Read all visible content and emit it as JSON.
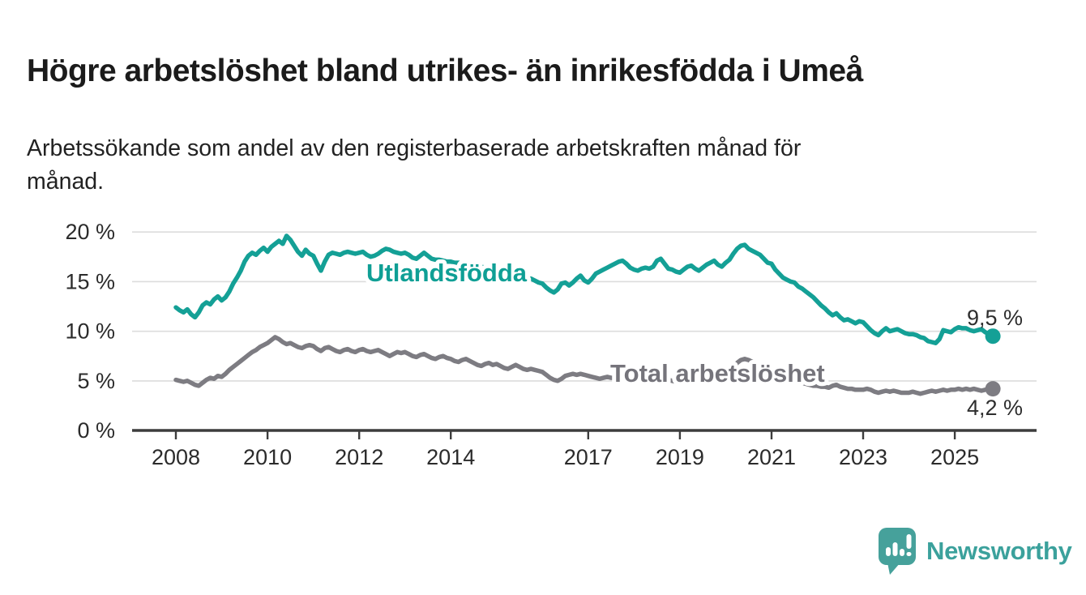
{
  "title": "Högre arbetslöshet bland utrikes- än inrikesfödda i Umeå",
  "subtitle": "Arbetssökande som andel av den registerbaserade arbetskraften månad för månad.",
  "subtitle_lines": {
    "line1": "Arbetssökande som andel av den registerbaserade arbetskraften månad för",
    "line2": "månad."
  },
  "branding": {
    "logo_text": "Newsworthy",
    "logo_color": "#46a19b",
    "logo_icon": "bar-chart-speech-bubble"
  },
  "colors": {
    "foreign_born_line": "#14a096",
    "total_line": "#7d7c82",
    "grid": "#dcdcdc",
    "axis": "#3d3d3d",
    "title_text": "#1b1b1b"
  },
  "chart_data": {
    "type": "line",
    "title": "Högre arbetslöshet bland utrikes- än inrikesfödda i Umeå",
    "subtitle": "Arbetssökande som andel av den registerbaserade arbetskraften månad för månad.",
    "unit": "%",
    "x_start": "2008-01",
    "x_end": "2025-11",
    "x_frequency": "monthly",
    "x_ticks": [
      "2008",
      "2010",
      "2012",
      "2014",
      "2017",
      "2019",
      "2021",
      "2023",
      "2025"
    ],
    "x_tick_years": [
      2008,
      2010,
      2012,
      2014,
      2017,
      2019,
      2021,
      2023,
      2025
    ],
    "y_ticks": [
      "20 %",
      "15 %",
      "10 %",
      "5 %",
      "0 %"
    ],
    "y_tick_values": [
      20,
      15,
      10,
      5,
      0
    ],
    "ylim": [
      0,
      20.5
    ],
    "grid": true,
    "legend_position": "inline-labels",
    "series": [
      {
        "name": "Utlandsfödda",
        "color": "#14a096",
        "end_label": "9,5 %",
        "end_value": 9.5,
        "values": [
          12.4,
          12.1,
          11.9,
          12.2,
          11.7,
          11.4,
          11.9,
          12.6,
          12.9,
          12.7,
          13.2,
          13.5,
          13.1,
          13.4,
          14.0,
          14.8,
          15.4,
          16.1,
          17.0,
          17.6,
          17.9,
          17.7,
          18.1,
          18.4,
          18.0,
          18.5,
          18.8,
          19.1,
          18.8,
          19.6,
          19.2,
          18.6,
          18.0,
          17.6,
          18.2,
          17.8,
          17.6,
          16.8,
          16.1,
          17.0,
          17.7,
          17.9,
          17.8,
          17.7,
          17.9,
          18.0,
          17.9,
          17.8,
          17.9,
          18.0,
          17.7,
          17.5,
          17.6,
          17.8,
          18.1,
          18.3,
          18.2,
          18.0,
          17.9,
          17.8,
          17.9,
          17.7,
          17.4,
          17.3,
          17.6,
          17.9,
          17.6,
          17.3,
          17.2,
          17.2,
          17.1,
          17.0,
          17.0,
          16.9,
          16.9,
          16.8,
          16.7,
          16.7,
          16.6,
          16.5,
          16.5,
          16.4,
          16.3,
          16.2,
          16.1,
          16.0,
          15.9,
          15.8,
          15.6,
          15.5,
          15.4,
          15.3,
          15.2,
          15.3,
          15.1,
          14.9,
          14.8,
          14.4,
          14.1,
          13.9,
          14.2,
          14.8,
          14.9,
          14.6,
          14.9,
          15.3,
          15.6,
          15.1,
          14.9,
          15.3,
          15.8,
          16.0,
          16.2,
          16.4,
          16.6,
          16.8,
          17.0,
          17.1,
          16.8,
          16.4,
          16.2,
          16.1,
          16.3,
          16.4,
          16.3,
          16.5,
          17.1,
          17.3,
          16.8,
          16.3,
          16.2,
          16.0,
          15.9,
          16.2,
          16.5,
          16.6,
          16.3,
          16.1,
          16.4,
          16.7,
          16.9,
          17.1,
          16.7,
          16.5,
          16.9,
          17.2,
          17.8,
          18.3,
          18.6,
          18.7,
          18.3,
          18.1,
          17.9,
          17.7,
          17.3,
          16.9,
          16.8,
          16.2,
          15.8,
          15.4,
          15.2,
          15.0,
          14.9,
          14.5,
          14.3,
          14.0,
          13.7,
          13.4,
          13.0,
          12.6,
          12.3,
          11.9,
          11.6,
          11.8,
          11.4,
          11.1,
          11.2,
          11.0,
          10.8,
          11.0,
          10.9,
          10.5,
          10.1,
          9.8,
          9.6,
          10.0,
          10.3,
          10.0,
          10.1,
          10.2,
          10.0,
          9.8,
          9.7,
          9.7,
          9.6,
          9.4,
          9.3,
          9.0,
          8.9,
          8.8,
          9.2,
          10.1,
          10.0,
          9.9,
          10.2,
          10.4,
          10.3,
          10.3,
          10.1,
          10.0,
          10.1,
          10.2,
          9.9,
          9.7,
          9.5
        ]
      },
      {
        "name": "Total arbetslöshet",
        "color": "#7d7c82",
        "end_label": "4,2 %",
        "end_value": 4.2,
        "values": [
          5.1,
          5.0,
          4.9,
          5.0,
          4.8,
          4.6,
          4.5,
          4.8,
          5.1,
          5.3,
          5.2,
          5.5,
          5.4,
          5.7,
          6.1,
          6.4,
          6.7,
          7.0,
          7.3,
          7.6,
          7.9,
          8.1,
          8.4,
          8.6,
          8.8,
          9.1,
          9.4,
          9.2,
          8.9,
          8.7,
          8.8,
          8.6,
          8.4,
          8.3,
          8.5,
          8.6,
          8.5,
          8.2,
          8.0,
          8.3,
          8.4,
          8.2,
          8.0,
          7.9,
          8.1,
          8.2,
          8.0,
          7.9,
          8.1,
          8.2,
          8.0,
          7.9,
          8.0,
          8.1,
          7.9,
          7.7,
          7.5,
          7.7,
          7.9,
          7.8,
          7.9,
          7.7,
          7.5,
          7.4,
          7.6,
          7.7,
          7.5,
          7.3,
          7.2,
          7.4,
          7.5,
          7.3,
          7.2,
          7.0,
          6.9,
          7.1,
          7.2,
          7.0,
          6.8,
          6.6,
          6.5,
          6.7,
          6.8,
          6.6,
          6.7,
          6.5,
          6.3,
          6.2,
          6.4,
          6.6,
          6.4,
          6.2,
          6.1,
          6.2,
          6.1,
          6.0,
          5.9,
          5.6,
          5.3,
          5.1,
          5.0,
          5.2,
          5.5,
          5.6,
          5.7,
          5.6,
          5.7,
          5.6,
          5.5,
          5.4,
          5.3,
          5.2,
          5.3,
          5.4,
          5.3,
          5.3,
          5.2,
          5.3,
          5.4,
          5.3,
          5.2,
          5.1,
          5.0,
          5.1,
          5.2,
          5.1,
          5.0,
          4.9,
          5.0,
          5.1,
          5.0,
          4.9,
          4.9,
          4.8,
          4.8,
          4.9,
          5.0,
          4.9,
          4.8,
          4.9,
          5.0,
          5.1,
          5.0,
          5.1,
          5.3,
          5.6,
          6.2,
          6.8,
          7.1,
          7.2,
          7.1,
          6.9,
          6.7,
          6.5,
          6.3,
          6.1,
          6.0,
          5.8,
          5.6,
          5.4,
          5.3,
          5.1,
          5.0,
          4.9,
          4.8,
          4.7,
          4.6,
          4.5,
          4.5,
          4.4,
          4.4,
          4.3,
          4.5,
          4.6,
          4.4,
          4.3,
          4.2,
          4.2,
          4.1,
          4.1,
          4.1,
          4.2,
          4.1,
          3.9,
          3.8,
          3.9,
          4.0,
          3.9,
          4.0,
          3.9,
          3.8,
          3.8,
          3.8,
          3.9,
          3.8,
          3.7,
          3.8,
          3.9,
          4.0,
          3.9,
          4.0,
          4.1,
          4.0,
          4.1,
          4.1,
          4.2,
          4.1,
          4.2,
          4.1,
          4.2,
          4.1,
          4.0,
          4.1,
          4.2,
          4.2
        ]
      }
    ]
  }
}
